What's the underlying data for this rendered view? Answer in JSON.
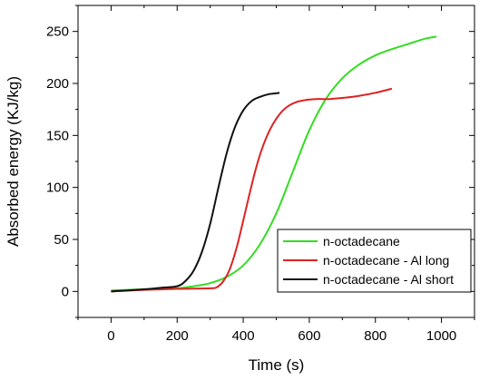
{
  "chart_data": {
    "type": "line",
    "title": "",
    "xlabel": "Time (s)",
    "ylabel": "Absorbed energy (KJ/kg)",
    "xlim": [
      -100,
      1100
    ],
    "ylim": [
      -25,
      275
    ],
    "xticks": [
      0,
      200,
      400,
      600,
      800,
      1000
    ],
    "yticks": [
      0,
      50,
      100,
      150,
      200,
      250
    ],
    "grid": false,
    "legend_position": "bottom-right",
    "series": [
      {
        "name": "n-octadecane",
        "color": "#33dd22",
        "x": [
          0,
          50,
          100,
          150,
          200,
          250,
          300,
          350,
          400,
          450,
          500,
          550,
          600,
          650,
          700,
          750,
          800,
          850,
          900,
          950,
          985
        ],
        "y": [
          1,
          1.5,
          2,
          2.5,
          3,
          5,
          8,
          14,
          25,
          45,
          75,
          115,
          155,
          185,
          205,
          218,
          227,
          233,
          238,
          243,
          245
        ]
      },
      {
        "name": "n-octadecane - Al long",
        "color": "#dd2222",
        "x": [
          0,
          100,
          200,
          300,
          320,
          340,
          360,
          380,
          400,
          420,
          440,
          460,
          480,
          500,
          520,
          540,
          560,
          580,
          600,
          620,
          640,
          660,
          700,
          750,
          800,
          850
        ],
        "y": [
          0,
          1.5,
          2.5,
          3,
          4,
          10,
          22,
          42,
          68,
          95,
          120,
          140,
          155,
          166,
          174,
          179,
          182,
          183.5,
          184.5,
          185,
          185,
          185,
          186,
          188,
          191,
          195
        ]
      },
      {
        "name": "n-octadecane - Al short",
        "color": "#111111",
        "x": [
          0,
          50,
          100,
          150,
          200,
          225,
          250,
          275,
          300,
          325,
          350,
          375,
          400,
          425,
          450,
          475,
          500,
          510
        ],
        "y": [
          0,
          1,
          2,
          3.5,
          5,
          10,
          20,
          38,
          65,
          100,
          133,
          158,
          174,
          183,
          187,
          189.5,
          190.5,
          191
        ]
      }
    ]
  }
}
